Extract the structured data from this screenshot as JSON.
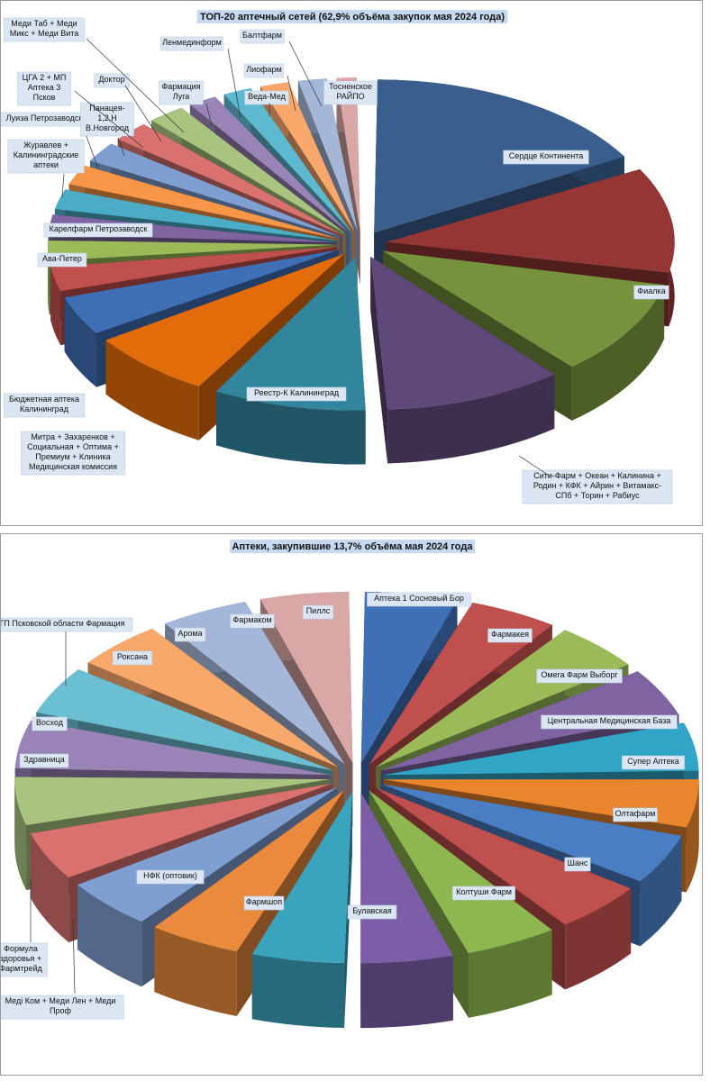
{
  "chart_data": [
    {
      "type": "pie",
      "title": "ТОП-20 аптечный сетей (62,9% объёма закупок мая 2024 года)",
      "slices": [
        {
          "label": "Сердце Континента",
          "value": 17.0,
          "color": "#3A5F8F"
        },
        {
          "label": "Фиалка",
          "value": 11.5,
          "color": "#943634"
        },
        {
          "label": "Сити-Фарм + Океан + Калинина + Родин + КФК + Айрин + Витамакс-СПб + Торин + Рабиус",
          "value": 10.5,
          "color": "#76923C"
        },
        {
          "label": "Реестр-К Калининград",
          "value": 10.5,
          "color": "#5F497A"
        },
        {
          "label": "Митра + Захаренков + Социальная + Оптима + Премиум + Клиника Медицинская комиссия",
          "value": 9.0,
          "color": "#31859C"
        },
        {
          "label": "Бюджетная аптека Калининград",
          "value": 7.5,
          "color": "#E36C0A"
        },
        {
          "label": "Ава-Петер",
          "value": 4.5,
          "color": "#3F6FB5"
        },
        {
          "label": "Карелфарм Петрозаводск",
          "value": 3.0,
          "color": "#C0504D"
        },
        {
          "label": "Журавлев + Калининградские аптеки",
          "value": 2.5,
          "color": "#9BBB59"
        },
        {
          "label": "Луиза Петрозаводск",
          "value": 2.5,
          "color": "#8064A2"
        },
        {
          "label": "Панацея-1,2,Н В.Новгород",
          "value": 2.5,
          "color": "#4BACC6"
        },
        {
          "label": "ЦГА 2 + МП Аптека 3 Псков",
          "value": 2.5,
          "color": "#F79646"
        },
        {
          "label": "Доктор",
          "value": 2.5,
          "color": "#7F9FD3"
        },
        {
          "label": "Меди Таб + Меди Микс + Меди Вита",
          "value": 2.5,
          "color": "#D9726F"
        },
        {
          "label": "Фармация Луга",
          "value": 2.5,
          "color": "#A9C47F"
        },
        {
          "label": "Ленмединформ",
          "value": 2.0,
          "color": "#9983B7"
        },
        {
          "label": "Веда-Мед",
          "value": 2.0,
          "color": "#5DB9CF"
        },
        {
          "label": "Лиофарм",
          "value": 2.0,
          "color": "#F9A86B"
        },
        {
          "label": "Балтфарм",
          "value": 2.0,
          "color": "#A5B7D8"
        },
        {
          "label": "Тосненское РАЙПО",
          "value": 1.5,
          "color": "#D9A7A6"
        }
      ]
    },
    {
      "type": "pie",
      "title": "Аптеки, закупившие 13,7% объёма мая 2024 года",
      "slices": [
        {
          "label": "Аптека 1 Сосновый Бор",
          "value": 5.0,
          "color": "#3F6FB5"
        },
        {
          "label": "Фармакея",
          "value": 4.8,
          "color": "#C0504D"
        },
        {
          "label": "Омега Фарм Выборг",
          "value": 4.8,
          "color": "#9BBB59"
        },
        {
          "label": "Центральная Медицинская База",
          "value": 4.8,
          "color": "#8064A2"
        },
        {
          "label": "Супер Аптека",
          "value": 4.8,
          "color": "#31A5C6"
        },
        {
          "label": "Олтафарм",
          "value": 4.8,
          "color": "#E9852D"
        },
        {
          "label": "Шанс",
          "value": 5.0,
          "color": "#4A7EC2"
        },
        {
          "label": "Колтуши Фарм",
          "value": 5.0,
          "color": "#C0504D"
        },
        {
          "label": "Булавская",
          "value": 5.0,
          "color": "#8EB84F"
        },
        {
          "label": "Фармшоп",
          "value": 5.0,
          "color": "#7B5EA7"
        },
        {
          "label": "НФК (оптовик)",
          "value": 5.0,
          "color": "#3AA3BE"
        },
        {
          "label": "Медi Ком + Меди Лен + Меди Проф",
          "value": 5.0,
          "color": "#EA8A3C"
        },
        {
          "label": "Формула здоровья + Фармтрейд",
          "value": 5.0,
          "color": "#7F9FD3"
        },
        {
          "label": "Здравница",
          "value": 4.8,
          "color": "#D9726F"
        },
        {
          "label": "Восход",
          "value": 4.8,
          "color": "#A9C47F"
        },
        {
          "label": "ГП Псковской области Фармация",
          "value": 4.8,
          "color": "#9983B7"
        },
        {
          "label": "Роксана",
          "value": 4.8,
          "color": "#6BBFD3"
        },
        {
          "label": "Арома",
          "value": 4.8,
          "color": "#F9A86B"
        },
        {
          "label": "Фармаком",
          "value": 4.8,
          "color": "#A5B7D8"
        },
        {
          "label": "Пиллс",
          "value": 4.8,
          "color": "#D9A7A6"
        }
      ]
    }
  ]
}
